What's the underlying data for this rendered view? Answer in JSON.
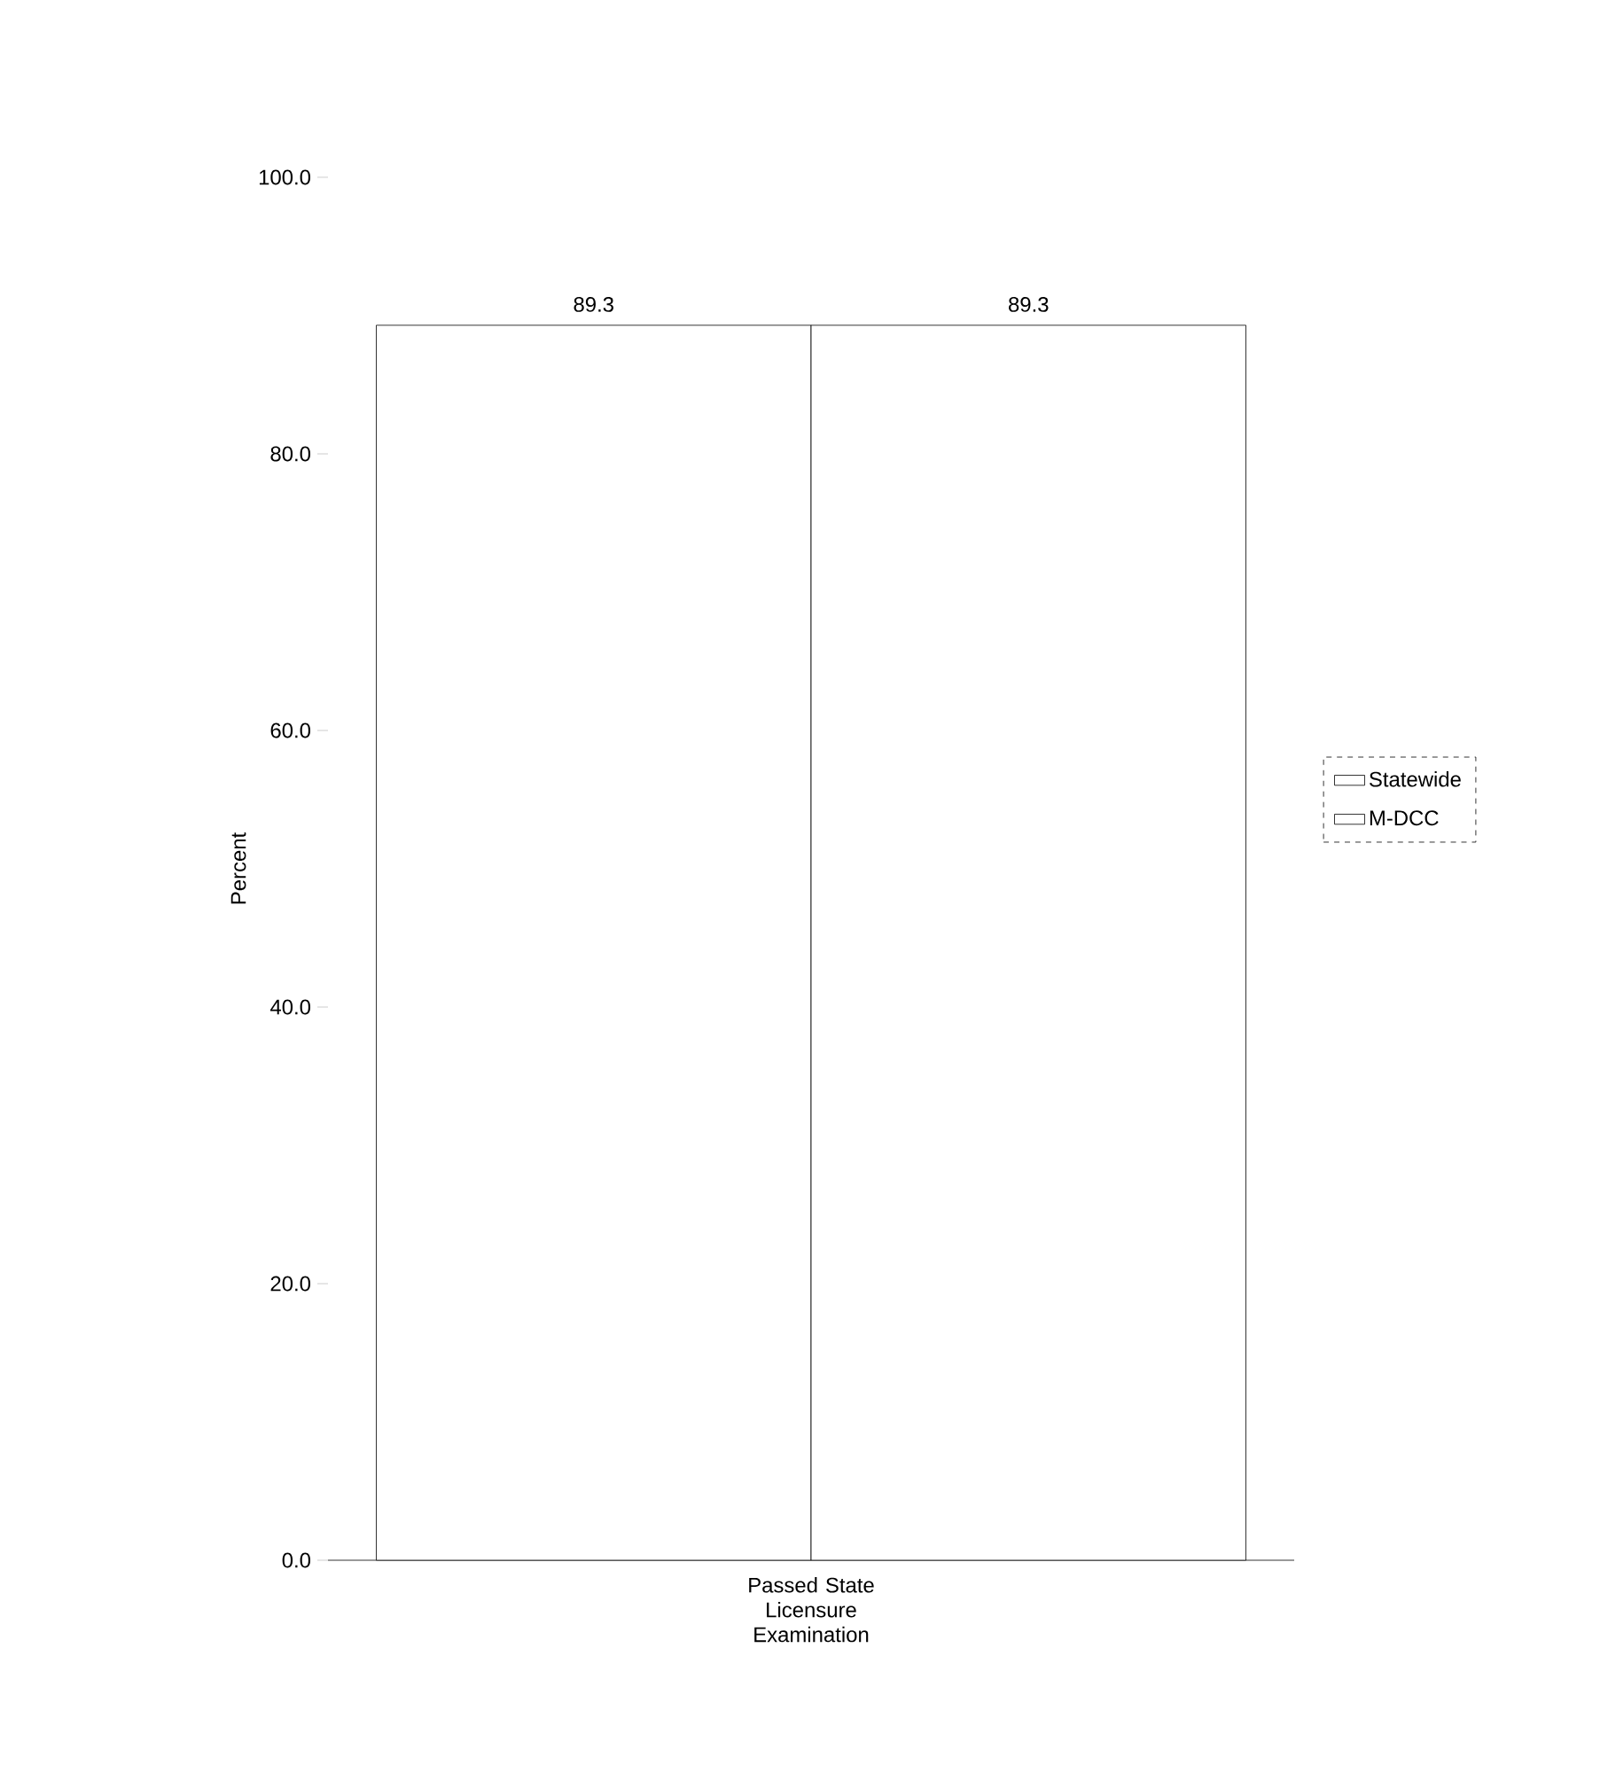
{
  "chart_data": {
    "type": "bar",
    "ylabel": "Percent",
    "categories": [
      "Passed State Licensure Examination"
    ],
    "series": [
      {
        "name": "Statewide",
        "color": "#ffffff",
        "values": [
          89.3
        ]
      },
      {
        "name": "M-DCC",
        "color": "#ffffff",
        "values": [
          89.3
        ]
      }
    ],
    "ylim": [
      0,
      100
    ],
    "yticks": [
      {
        "value": 0,
        "label": "0.0"
      },
      {
        "value": 20,
        "label": "20.0"
      },
      {
        "value": 40,
        "label": "40.0"
      },
      {
        "value": 60,
        "label": "60.0"
      },
      {
        "value": 80,
        "label": "80.0"
      },
      {
        "value": 100,
        "label": "100.0"
      }
    ],
    "data_labels": true,
    "legend": "right",
    "grid": false
  }
}
